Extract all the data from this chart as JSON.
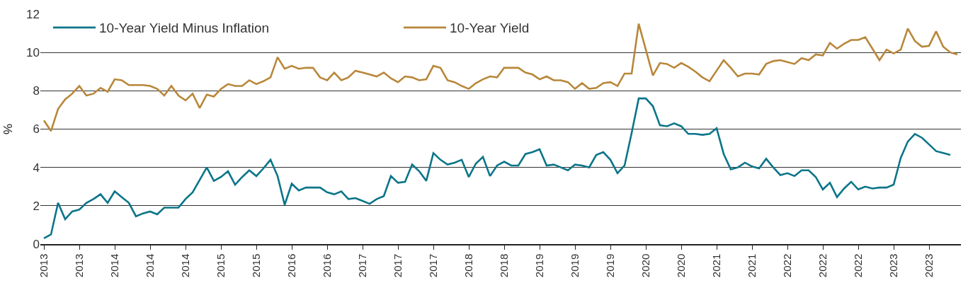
{
  "chart_data": {
    "type": "line",
    "ylabel": "%",
    "categories": [
      "2013",
      null,
      null,
      null,
      null,
      "2013",
      null,
      null,
      null,
      null,
      "2014",
      null,
      null,
      null,
      null,
      "2014",
      null,
      null,
      null,
      null,
      "2014",
      null,
      null,
      null,
      null,
      "2015",
      null,
      null,
      null,
      null,
      "2015",
      null,
      null,
      null,
      null,
      "2016",
      null,
      null,
      null,
      null,
      "2016",
      null,
      null,
      null,
      null,
      "2017",
      null,
      null,
      null,
      null,
      "2017",
      null,
      null,
      null,
      null,
      "2017",
      null,
      null,
      null,
      null,
      "2018",
      null,
      null,
      null,
      null,
      "2018",
      null,
      null,
      null,
      null,
      "2019",
      null,
      null,
      null,
      null,
      "2019",
      null,
      null,
      null,
      null,
      "2019",
      null,
      null,
      null,
      null,
      "2020",
      null,
      null,
      null,
      null,
      "2020",
      null,
      null,
      null,
      null,
      "2021",
      null,
      null,
      null,
      null,
      "2021",
      null,
      null,
      null,
      null,
      "2022",
      null,
      null,
      null,
      null,
      "2022",
      null,
      null,
      null,
      null,
      "2022",
      null,
      null,
      null,
      null,
      "2023",
      null,
      null,
      null,
      null,
      "2023",
      null,
      null,
      null,
      null
    ],
    "series": [
      {
        "name": "10-Year Yield Minus Inflation",
        "color": "#0b7589",
        "values": [
          0.3,
          0.5,
          2.15,
          1.3,
          1.7,
          1.8,
          2.15,
          2.35,
          2.6,
          2.15,
          2.75,
          2.45,
          2.15,
          1.45,
          1.6,
          1.7,
          1.55,
          1.9,
          1.9,
          1.9,
          2.35,
          2.7,
          3.35,
          4.0,
          3.3,
          3.5,
          3.8,
          3.1,
          3.5,
          3.85,
          3.55,
          3.95,
          4.4,
          3.55,
          2.05,
          3.15,
          2.8,
          2.95,
          2.95,
          2.95,
          2.7,
          2.6,
          2.75,
          2.35,
          2.4,
          2.25,
          2.1,
          2.35,
          2.5,
          3.55,
          3.2,
          3.25,
          4.15,
          3.8,
          3.3,
          4.75,
          4.4,
          4.15,
          4.25,
          4.4,
          3.5,
          4.2,
          4.55,
          3.55,
          4.1,
          4.3,
          4.1,
          4.1,
          4.7,
          4.8,
          4.95,
          4.1,
          4.15,
          4.0,
          3.85,
          4.15,
          4.1,
          4.0,
          4.65,
          4.8,
          4.4,
          3.7,
          4.1,
          5.8,
          7.6,
          7.6,
          7.2,
          6.2,
          6.15,
          6.3,
          6.15,
          5.75,
          5.75,
          5.7,
          5.75,
          6.05,
          4.7,
          3.9,
          4.0,
          4.25,
          4.05,
          3.95,
          4.45,
          4.0,
          3.6,
          3.7,
          3.55,
          3.85,
          3.85,
          3.5,
          2.85,
          3.2,
          2.45,
          2.9,
          3.25,
          2.85,
          3.0,
          2.9,
          2.95,
          2.95,
          3.1,
          4.5,
          5.35,
          5.75,
          5.55,
          5.2,
          4.85,
          4.75,
          4.65,
          null
        ]
      },
      {
        "name": "10-Year Yield",
        "color": "#b8873a",
        "values": [
          6.45,
          5.9,
          7.05,
          7.55,
          7.85,
          8.25,
          7.75,
          7.85,
          8.15,
          7.95,
          8.6,
          8.55,
          8.3,
          8.3,
          8.3,
          8.25,
          8.1,
          7.75,
          8.25,
          7.75,
          7.5,
          7.85,
          7.1,
          7.8,
          7.7,
          8.1,
          8.35,
          8.25,
          8.25,
          8.55,
          8.35,
          8.5,
          8.7,
          9.75,
          9.15,
          9.3,
          9.15,
          9.2,
          9.2,
          8.7,
          8.55,
          8.95,
          8.55,
          8.7,
          9.05,
          8.95,
          8.85,
          8.75,
          8.95,
          8.65,
          8.45,
          8.75,
          8.7,
          8.55,
          8.6,
          9.3,
          9.2,
          8.55,
          8.45,
          8.25,
          8.1,
          8.4,
          8.6,
          8.75,
          8.7,
          9.2,
          9.2,
          9.2,
          8.95,
          8.85,
          8.6,
          8.75,
          8.55,
          8.55,
          8.45,
          8.1,
          8.4,
          8.1,
          8.15,
          8.4,
          8.45,
          8.25,
          8.9,
          8.9,
          11.5,
          10.15,
          8.8,
          9.45,
          9.4,
          9.2,
          9.45,
          9.25,
          9.0,
          8.7,
          8.5,
          9.05,
          9.6,
          9.2,
          8.75,
          8.9,
          8.9,
          8.85,
          9.4,
          9.55,
          9.6,
          9.5,
          9.4,
          9.7,
          9.6,
          9.9,
          9.85,
          10.5,
          10.2,
          10.45,
          10.65,
          10.65,
          10.8,
          10.2,
          9.6,
          10.15,
          9.95,
          10.15,
          11.25,
          10.6,
          10.3,
          10.35,
          11.1,
          10.3,
          10.0,
          9.9
        ]
      }
    ],
    "ylim": [
      0,
      12
    ],
    "yticks": [
      0,
      2,
      4,
      6,
      8,
      10,
      12
    ],
    "grid": "y",
    "legend": "top left",
    "marker": "none",
    "line_style": "solid"
  }
}
